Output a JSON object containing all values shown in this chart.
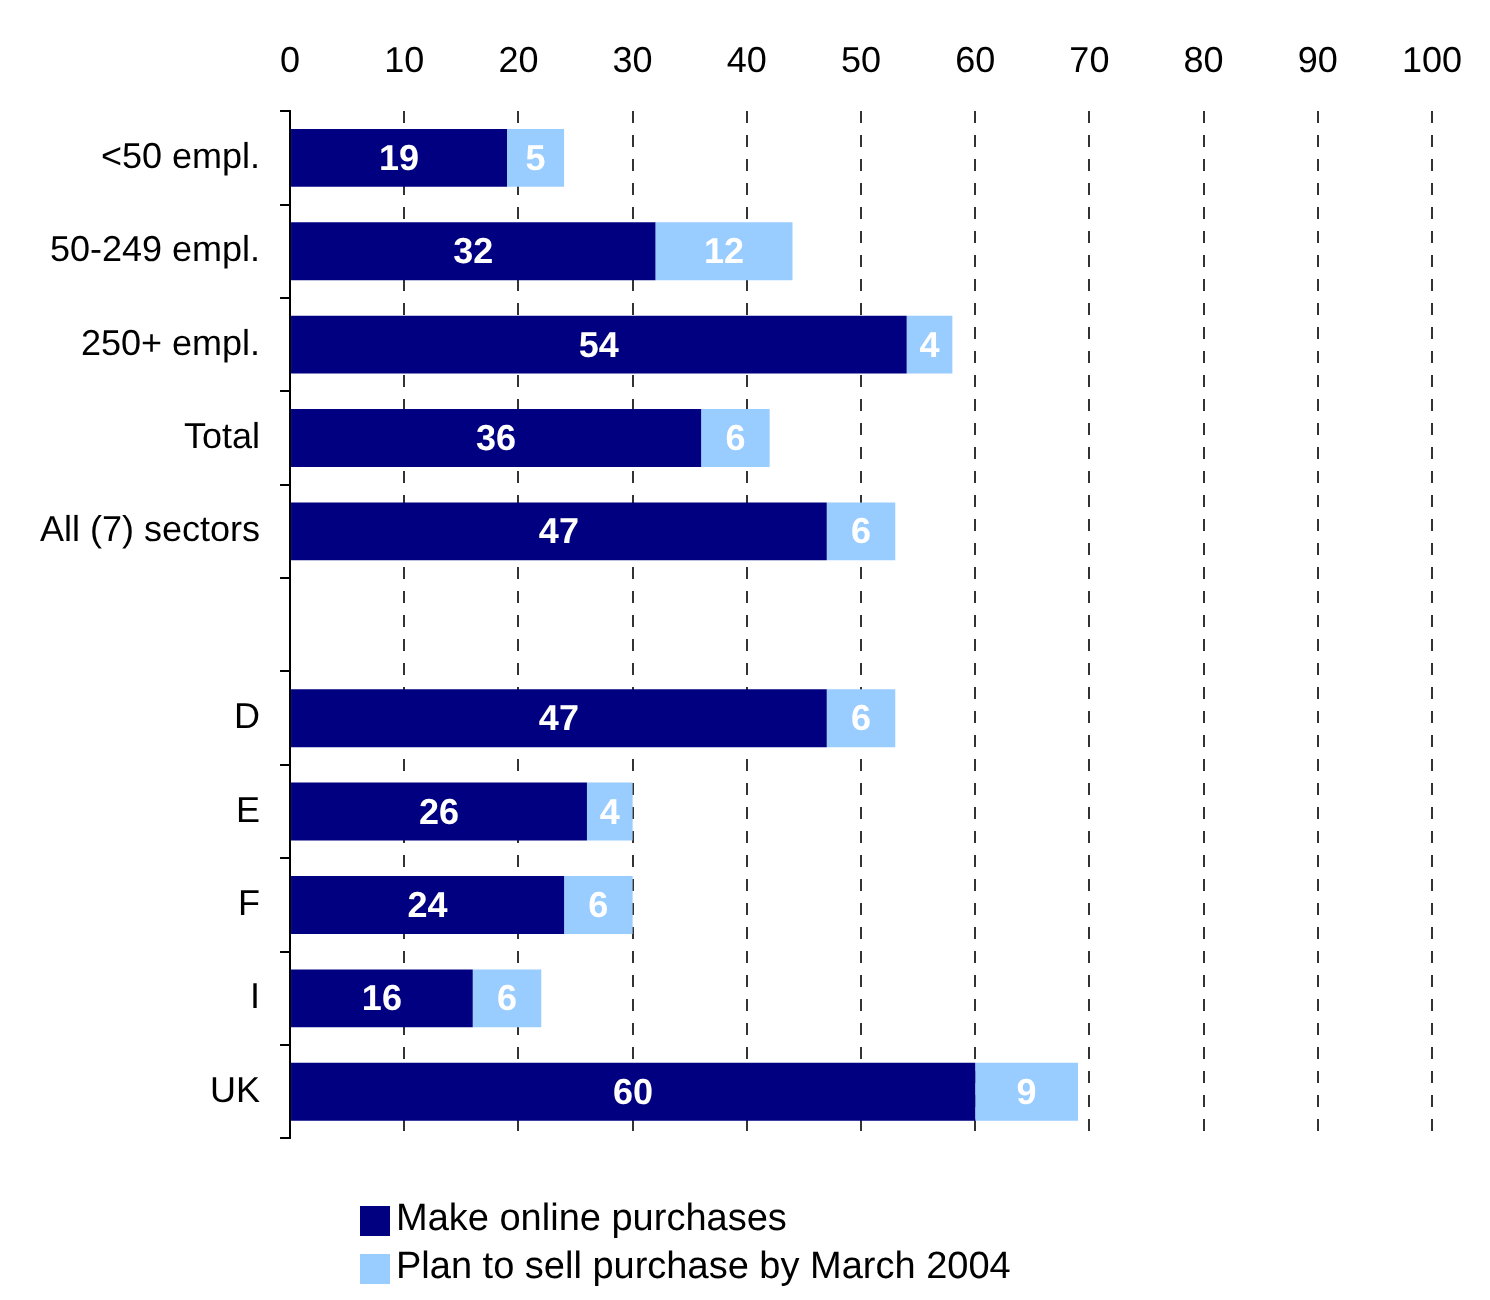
{
  "chart_data": {
    "type": "bar",
    "orientation": "horizontal",
    "stacked": true,
    "categories": [
      "<50 empl.",
      "50-249 empl.",
      "250+ empl.",
      "Total",
      "All (7) sectors",
      null,
      "D",
      "E",
      "F",
      "I",
      "UK"
    ],
    "series": [
      {
        "name": "Make online purchases",
        "color": "#000080",
        "values": [
          19,
          32,
          54,
          36,
          47,
          null,
          47,
          26,
          24,
          16,
          60
        ]
      },
      {
        "name": "Plan to sell purchase by March 2004",
        "color": "#99ccff",
        "values": [
          5,
          12,
          4,
          6,
          6,
          null,
          6,
          4,
          6,
          6,
          9
        ]
      }
    ],
    "xlim": [
      0,
      100
    ],
    "xticks": [
      0,
      10,
      20,
      30,
      40,
      50,
      60,
      70,
      80,
      90,
      100
    ],
    "grid": "x",
    "legend": "bottom",
    "data_labels": true
  }
}
